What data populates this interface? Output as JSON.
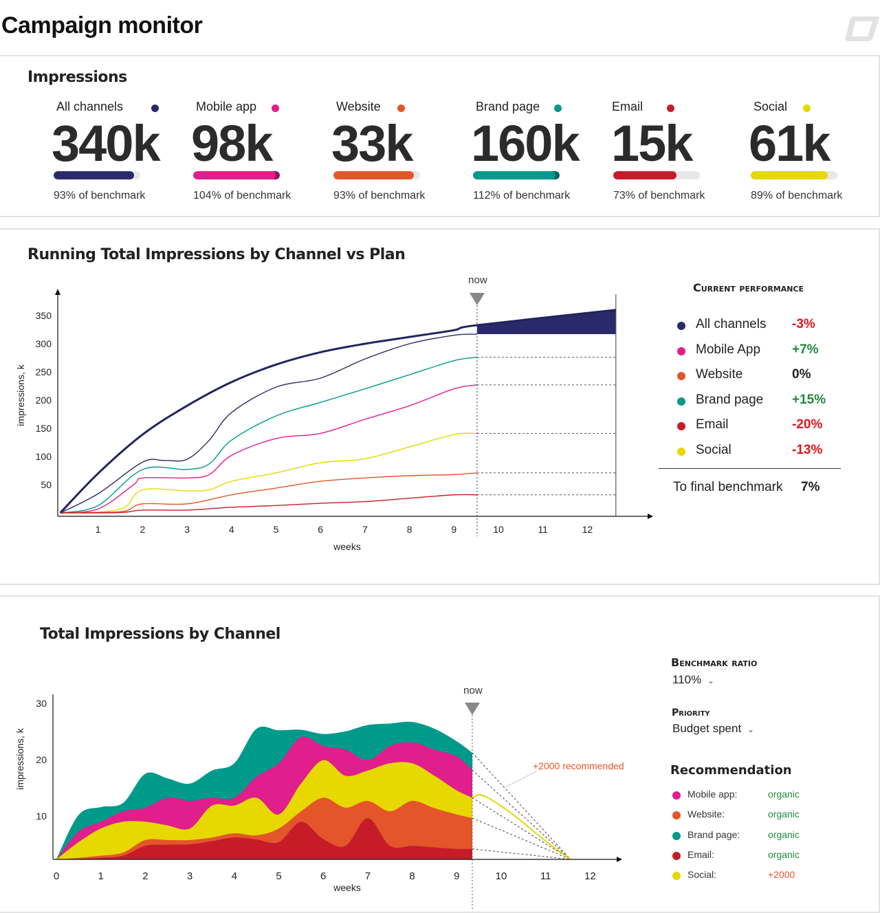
{
  "header": {
    "title": "Campaign monitor"
  },
  "colors": {
    "all": "#2a2a6a",
    "mobile": "#e01e8c",
    "website": "#e4562a",
    "brand": "#009a8a",
    "email": "#c61c2a",
    "social": "#e6d800",
    "good": "#1f8a3c",
    "bad": "#e0141e",
    "rec": "#e4562a"
  },
  "impressions": {
    "title": "Impressions",
    "kpis": [
      {
        "label": "All channels",
        "value": "340k",
        "benchmark_pct": 93,
        "benchmark_text": "93% of benchmark",
        "color": "#2a2a6a"
      },
      {
        "label": "Mobile app",
        "value": "98k",
        "benchmark_pct": 104,
        "benchmark_text": "104% of benchmark",
        "color": "#e01e8c"
      },
      {
        "label": "Website",
        "value": "33k",
        "benchmark_pct": 93,
        "benchmark_text": "93% of benchmark",
        "color": "#e4562a"
      },
      {
        "label": "Brand page",
        "value": "160k",
        "benchmark_pct": 112,
        "benchmark_text": "112% of benchmark",
        "color": "#009a8a"
      },
      {
        "label": "Email",
        "value": "15k",
        "benchmark_pct": 73,
        "benchmark_text": "73% of benchmark",
        "color": "#c61c2a"
      },
      {
        "label": "Social",
        "value": "61k",
        "benchmark_pct": 89,
        "benchmark_text": "89% of benchmark",
        "color": "#e6d800"
      }
    ]
  },
  "running": {
    "title": "Running Total Impressions by Channel vs Plan",
    "performance_title": "Current performance",
    "performance": [
      {
        "label": "All channels",
        "value": "-3%",
        "color": "#2a2a6a",
        "good": false
      },
      {
        "label": "Mobile App",
        "value": "+7%",
        "color": "#e01e8c",
        "good": true
      },
      {
        "label": "Website",
        "value": "0%",
        "color": "#e4562a",
        "neutral": true
      },
      {
        "label": "Brand page",
        "value": "+15%",
        "color": "#009a8a",
        "good": true
      },
      {
        "label": "Email",
        "value": "-20%",
        "color": "#c61c2a",
        "good": false
      },
      {
        "label": "Social",
        "value": "-13%",
        "color": "#e6d800",
        "good": false
      }
    ],
    "final_label": "To final benchmark",
    "final_value": "7%"
  },
  "total": {
    "title": "Total Impressions by Channel",
    "benchmark_label": "Benchmark ratio",
    "benchmark_value": "110%",
    "priority_label": "Priority",
    "priority_value": "Budget spent",
    "rec_title": "Recommendation",
    "recs": [
      {
        "label": "Mobile app:",
        "value": "organic",
        "color": "#e01e8c",
        "positive": true
      },
      {
        "label": "Website:",
        "value": "organic",
        "color": "#e4562a",
        "positive": true
      },
      {
        "label": "Brand page:",
        "value": "organic",
        "color": "#009a8a",
        "positive": true
      },
      {
        "label": "Email:",
        "value": "organic",
        "color": "#c61c2a",
        "positive": true
      },
      {
        "label": "Social:",
        "value": "+2000",
        "color": "#e6d800",
        "positive": false
      }
    ]
  },
  "chart_data": [
    {
      "type": "line",
      "title": "Running Total Impressions by Channel vs Plan",
      "xlabel": "weeks",
      "ylabel": "impressions, k",
      "xlim": [
        0,
        12.64
      ],
      "ylim": [
        0,
        370
      ],
      "xticks": [
        1,
        2,
        3,
        4,
        5,
        6,
        7,
        8,
        9,
        10,
        11,
        12
      ],
      "yticks": [
        50,
        100,
        150,
        200,
        250,
        300,
        350
      ],
      "now_label": "now",
      "now_week": 9.52,
      "plan": {
        "name": "Plan",
        "x": [
          0.15,
          1,
          2,
          3,
          4,
          5,
          6,
          7,
          8,
          9,
          9.52,
          12.64
        ],
        "y": [
          0,
          70,
          139,
          190,
          232,
          263,
          285,
          300,
          312,
          324,
          333,
          360
        ]
      },
      "series": [
        {
          "name": "All channels",
          "color": "#2a2a6a",
          "x": [
            0.15,
            1,
            2,
            2.5,
            3,
            3.5,
            4,
            5,
            6,
            7,
            8,
            9,
            9.52
          ],
          "y": [
            0,
            34,
            90,
            93,
            95,
            129,
            178,
            223,
            239,
            273,
            300,
            315,
            317
          ]
        },
        {
          "name": "Brand page",
          "color": "#009a8a",
          "x": [
            0.15,
            1,
            2,
            3,
            3.5,
            4,
            5,
            6,
            7,
            8,
            9,
            9.52
          ],
          "y": [
            0,
            13,
            77,
            77,
            87,
            129,
            172,
            196,
            220,
            245,
            270,
            276
          ]
        },
        {
          "name": "Mobile app",
          "color": "#e01e8c",
          "x": [
            0.15,
            1,
            1.8,
            2,
            3,
            3.5,
            4,
            5,
            6,
            7,
            8,
            9,
            9.52
          ],
          "y": [
            0,
            7,
            50,
            62,
            62,
            68,
            102,
            132,
            141,
            166,
            190,
            220,
            227
          ]
        },
        {
          "name": "Social",
          "color": "#e6d800",
          "x": [
            0.15,
            1,
            1.6,
            2,
            3,
            3.5,
            4,
            5,
            6,
            7,
            8,
            9,
            9.52
          ],
          "y": [
            0,
            1,
            10,
            41,
            39,
            41,
            56,
            71,
            89,
            96,
            117,
            139,
            141
          ]
        },
        {
          "name": "Website",
          "color": "#e4562a",
          "x": [
            0.15,
            1,
            1.6,
            2,
            3,
            4,
            5,
            6,
            7,
            8,
            9,
            9.52
          ],
          "y": [
            0,
            1,
            3,
            16,
            16,
            32,
            44,
            56,
            62,
            66,
            68,
            71
          ]
        },
        {
          "name": "Email",
          "color": "#c61c2a",
          "x": [
            0.15,
            1,
            1.6,
            2,
            3,
            4,
            5,
            6,
            7,
            8,
            9,
            9.52
          ],
          "y": [
            0,
            0,
            1,
            5,
            5,
            10,
            13,
            17,
            20,
            26,
            32,
            32
          ]
        }
      ]
    },
    {
      "type": "area",
      "stacked": true,
      "title": "Total Impressions by Channel",
      "xlabel": "weeks",
      "ylabel": "impressions, k",
      "xlim": [
        0,
        12.5
      ],
      "ylim": [
        0,
        30
      ],
      "xticks": [
        0,
        1,
        2,
        3,
        4,
        5,
        6,
        7,
        8,
        9,
        10,
        11,
        12
      ],
      "yticks": [
        10,
        20,
        30
      ],
      "now_label": "now",
      "now_week": 9.35,
      "forecast_end_week": 11.56,
      "annotation": "+2000 recommended",
      "x": [
        0,
        0.5,
        1,
        1.5,
        2,
        2.5,
        3,
        3.5,
        4,
        4.5,
        5,
        5.5,
        6,
        6.5,
        7,
        7.5,
        8,
        8.5,
        9,
        9.35
      ],
      "series": [
        {
          "name": "Email",
          "color": "#c61c2a",
          "values": [
            0,
            0.1,
            0.3,
            0.7,
            2.6,
            2.8,
            2.9,
            3.5,
            4.2,
            3.8,
            3.3,
            7.2,
            3.9,
            2.6,
            7.9,
            2.6,
            2.6,
            2.3,
            2.0,
            2.0
          ]
        },
        {
          "name": "Website",
          "color": "#e4562a",
          "values": [
            0,
            0.2,
            0.4,
            0.6,
            1.1,
            0.9,
            0.8,
            0.7,
            0.8,
            0.8,
            2.6,
            2.0,
            7.9,
            7.3,
            3.3,
            6.6,
            8.6,
            7.5,
            6.6,
            5.9
          ]
        },
        {
          "name": "Social",
          "color": "#e6d800",
          "values": [
            0,
            3.0,
            5.2,
            5.9,
            3.5,
            2.8,
            2.2,
            6.1,
            5.3,
            7.2,
            2.7,
            5.3,
            7.2,
            6.1,
            5.8,
            9.2,
            7.2,
            6.2,
            4.6,
            3.9
          ]
        },
        {
          "name": "Mobile app",
          "color": "#e01e8c",
          "values": [
            0,
            2.0,
            1.3,
            2.0,
            2.7,
            5.3,
            5.3,
            1.5,
            1.5,
            4.0,
            9.8,
            8.9,
            2.7,
            5.0,
            2.0,
            3.3,
            4.0,
            5.0,
            6.5,
            5.3
          ]
        },
        {
          "name": "Brand page",
          "color": "#009a8a",
          "values": [
            0,
            3.2,
            2.8,
            1.6,
            6.5,
            3.7,
            3.3,
            5.2,
            6.6,
            9.2,
            6.3,
            1.4,
            2.3,
            3.5,
            6.7,
            4.3,
            3.9,
            4.0,
            2.9,
            3.3
          ]
        }
      ],
      "social_forecast": {
        "x": [
          9.35,
          9.6,
          10.2,
          11,
          11.56
        ],
        "y": [
          11.8,
          12.2,
          9,
          3.5,
          0
        ]
      }
    }
  ]
}
